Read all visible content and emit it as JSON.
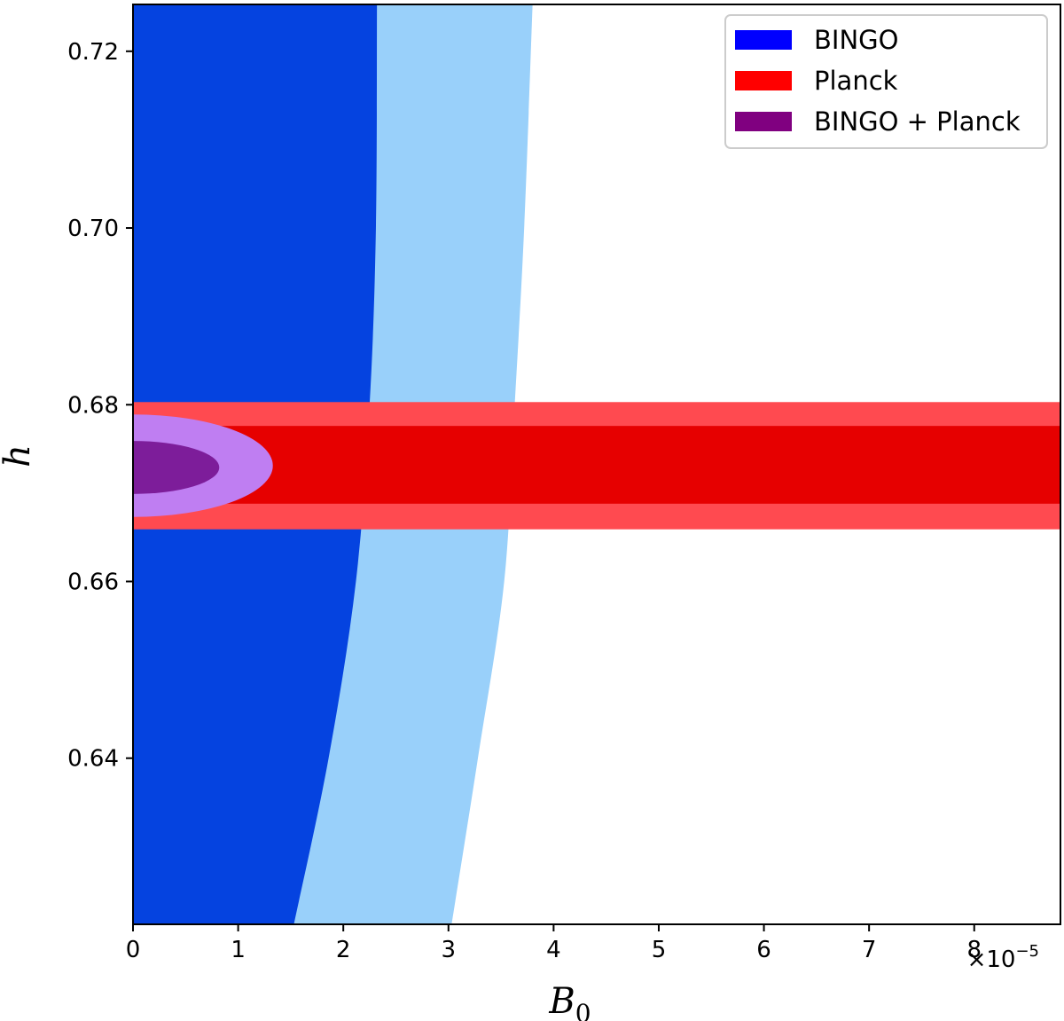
{
  "chart_data": {
    "type": "contour",
    "xlabel": "B",
    "xlabel_sub": "0",
    "ylabel": "h",
    "x_offset_text": "×10",
    "x_offset_exp": "−5",
    "xlim": [
      0,
      8.82
    ],
    "ylim": [
      0.6212,
      0.7253
    ],
    "x_ticks": [
      0,
      1,
      2,
      3,
      4,
      5,
      6,
      7,
      8
    ],
    "x_tick_labels": [
      "0",
      "1",
      "2",
      "3",
      "4",
      "5",
      "6",
      "7",
      "8"
    ],
    "y_ticks": [
      0.64,
      0.66,
      0.68,
      0.7,
      0.72
    ],
    "y_tick_labels": [
      "0.64",
      "0.66",
      "0.68",
      "0.70",
      "0.72"
    ],
    "legend": [
      {
        "label": "BINGO",
        "color": "#0000ff"
      },
      {
        "label": "Planck",
        "color": "#ff0000"
      },
      {
        "label": "BINGO + Planck",
        "color": "#800080"
      }
    ],
    "legend_position": "upper-right",
    "regions": [
      {
        "name": "BINGO 95%",
        "color": "#99d0fa",
        "kind": "band-left",
        "boundary": [
          [
            3.03,
            0.6212
          ],
          [
            3.28,
            0.64
          ],
          [
            3.53,
            0.66
          ],
          [
            3.63,
            0.68
          ],
          [
            3.72,
            0.7
          ],
          [
            3.8,
            0.7253
          ]
        ]
      },
      {
        "name": "BINGO 68%",
        "color": "#0543e0",
        "kind": "band-left",
        "boundary": [
          [
            1.53,
            0.6212
          ],
          [
            1.86,
            0.64
          ],
          [
            2.12,
            0.66
          ],
          [
            2.25,
            0.68
          ],
          [
            2.31,
            0.7
          ],
          [
            2.32,
            0.7253
          ]
        ]
      },
      {
        "name": "Planck 95%",
        "color": "#ff4a50",
        "kind": "h-band",
        "y_range": [
          0.6659,
          0.6803
        ]
      },
      {
        "name": "Planck 68%",
        "color": "#e60000",
        "kind": "h-band",
        "y_range": [
          0.6688,
          0.6776
        ]
      },
      {
        "name": "BINGO + Planck 95%",
        "color": "#bf7ef2",
        "kind": "ellipse",
        "x_extent": 1.33,
        "y_center": 0.6731,
        "y_half_width": 0.0058
      },
      {
        "name": "BINGO + Planck 68%",
        "color": "#7d1d9a",
        "kind": "ellipse",
        "x_extent": 0.82,
        "y_center": 0.6729,
        "y_half_width": 0.003
      }
    ]
  }
}
